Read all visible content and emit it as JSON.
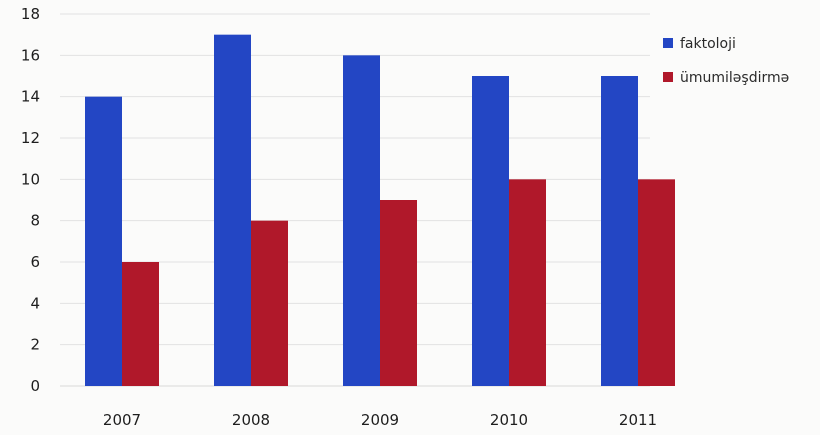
{
  "chart_data": {
    "type": "bar",
    "categories": [
      "2007",
      "2008",
      "2009",
      "2010",
      "2011"
    ],
    "series": [
      {
        "name": "faktoloji",
        "values": [
          14,
          17,
          16,
          15,
          15
        ],
        "color": "#2346c4"
      },
      {
        "name": "ümumiləşdirmə",
        "values": [
          6,
          8,
          9,
          10,
          10
        ],
        "color": "#b0182a"
      }
    ],
    "ylim": [
      0,
      18
    ],
    "yticks": [
      0,
      2,
      4,
      6,
      8,
      10,
      12,
      14,
      16,
      18
    ],
    "grid": true,
    "legend": "right"
  }
}
